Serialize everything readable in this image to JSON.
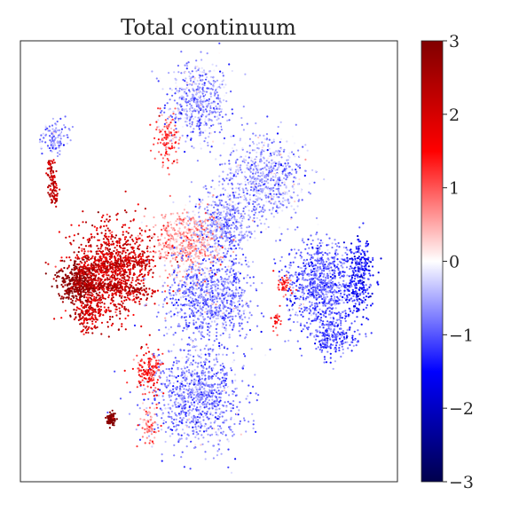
{
  "chart_data": {
    "type": "scatter",
    "title": "Total continuum",
    "xlabel": "",
    "ylabel": "",
    "axis_ticks_visible": false,
    "grid": false,
    "colormap": "seismic",
    "colormap_stops": [
      "#00004c",
      "#0000ff",
      "#ffffff",
      "#ff0000",
      "#800000"
    ],
    "colorbar": {
      "position": "right",
      "range": [
        -3,
        3
      ],
      "ticks": [
        {
          "value": 3,
          "label": "3"
        },
        {
          "value": 2,
          "label": "2"
        },
        {
          "value": 1,
          "label": "1"
        },
        {
          "value": 0,
          "label": "0"
        },
        {
          "value": -1,
          "label": "−1"
        },
        {
          "value": -2,
          "label": "−2"
        },
        {
          "value": -3,
          "label": "−3"
        }
      ]
    },
    "xlim": [
      0,
      1
    ],
    "ylim": [
      0,
      1
    ],
    "clusters": [
      {
        "cx": 0.47,
        "cy": 0.86,
        "rx": 0.07,
        "ry": 0.08,
        "value": -0.6,
        "n": 550
      },
      {
        "cx": 0.39,
        "cy": 0.78,
        "rx": 0.03,
        "ry": 0.05,
        "value": 1.0,
        "n": 120
      },
      {
        "cx": 0.65,
        "cy": 0.69,
        "rx": 0.09,
        "ry": 0.08,
        "value": -0.5,
        "n": 700
      },
      {
        "cx": 0.54,
        "cy": 0.58,
        "rx": 0.07,
        "ry": 0.07,
        "value": -0.6,
        "n": 550
      },
      {
        "cx": 0.44,
        "cy": 0.54,
        "rx": 0.08,
        "ry": 0.06,
        "value": 0.5,
        "n": 550
      },
      {
        "cx": 0.24,
        "cy": 0.48,
        "rx": 0.09,
        "ry": 0.09,
        "value": 2.0,
        "n": 1000
      },
      {
        "cx": 0.15,
        "cy": 0.45,
        "rx": 0.04,
        "ry": 0.04,
        "value": 3.0,
        "n": 320
      },
      {
        "cx": 0.18,
        "cy": 0.38,
        "rx": 0.03,
        "ry": 0.04,
        "value": 2.0,
        "n": 150
      },
      {
        "cx": 0.5,
        "cy": 0.42,
        "rx": 0.1,
        "ry": 0.07,
        "value": -0.7,
        "n": 850
      },
      {
        "cx": 0.8,
        "cy": 0.45,
        "rx": 0.08,
        "ry": 0.08,
        "value": -0.9,
        "n": 850
      },
      {
        "cx": 0.9,
        "cy": 0.47,
        "rx": 0.03,
        "ry": 0.07,
        "value": -1.4,
        "n": 260
      },
      {
        "cx": 0.83,
        "cy": 0.33,
        "rx": 0.05,
        "ry": 0.04,
        "value": -1.0,
        "n": 250
      },
      {
        "cx": 0.7,
        "cy": 0.45,
        "rx": 0.02,
        "ry": 0.02,
        "value": 1.2,
        "n": 45
      },
      {
        "cx": 0.68,
        "cy": 0.37,
        "rx": 0.01,
        "ry": 0.02,
        "value": 1.2,
        "n": 25
      },
      {
        "cx": 0.47,
        "cy": 0.2,
        "rx": 0.1,
        "ry": 0.1,
        "value": -0.7,
        "n": 1000
      },
      {
        "cx": 0.34,
        "cy": 0.25,
        "rx": 0.03,
        "ry": 0.04,
        "value": 1.3,
        "n": 150
      },
      {
        "cx": 0.34,
        "cy": 0.13,
        "rx": 0.02,
        "ry": 0.03,
        "value": 0.8,
        "n": 70
      },
      {
        "cx": 0.24,
        "cy": 0.14,
        "rx": 0.01,
        "ry": 0.015,
        "value": 3.0,
        "n": 70
      },
      {
        "cx": 0.09,
        "cy": 0.78,
        "rx": 0.03,
        "ry": 0.03,
        "value": -0.6,
        "n": 120
      }
    ],
    "streaks": [
      {
        "x0": 0.08,
        "y0": 0.73,
        "x1": 0.09,
        "y1": 0.63,
        "value": 2.2,
        "n": 110
      },
      {
        "x0": 0.14,
        "y0": 0.45,
        "x1": 0.35,
        "y1": 0.43,
        "value": 2.4,
        "n": 200
      },
      {
        "x0": 0.14,
        "y0": 0.48,
        "x1": 0.34,
        "y1": 0.5,
        "value": 2.2,
        "n": 150
      }
    ]
  }
}
